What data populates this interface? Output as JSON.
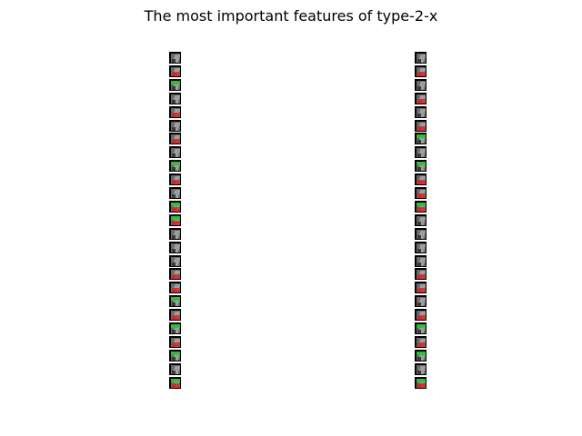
{
  "title": "The most important features of type-2-x",
  "columns": [
    {
      "name": "left",
      "tiles": [
        {
          "overlay": "none"
        },
        {
          "overlay": "red"
        },
        {
          "overlay": "green"
        },
        {
          "overlay": "none"
        },
        {
          "overlay": "red"
        },
        {
          "overlay": "none"
        },
        {
          "overlay": "red"
        },
        {
          "overlay": "none"
        },
        {
          "overlay": "green"
        },
        {
          "overlay": "red"
        },
        {
          "overlay": "none"
        },
        {
          "overlay": "green-red"
        },
        {
          "overlay": "green-red"
        },
        {
          "overlay": "none"
        },
        {
          "overlay": "none"
        },
        {
          "overlay": "none"
        },
        {
          "overlay": "red"
        },
        {
          "overlay": "red"
        },
        {
          "overlay": "green"
        },
        {
          "overlay": "red"
        },
        {
          "overlay": "green"
        },
        {
          "overlay": "red"
        },
        {
          "overlay": "green"
        },
        {
          "overlay": "none"
        },
        {
          "overlay": "green-red"
        }
      ]
    },
    {
      "name": "right",
      "tiles": [
        {
          "overlay": "none"
        },
        {
          "overlay": "red"
        },
        {
          "overlay": "none"
        },
        {
          "overlay": "red"
        },
        {
          "overlay": "none"
        },
        {
          "overlay": "red"
        },
        {
          "overlay": "green"
        },
        {
          "overlay": "none"
        },
        {
          "overlay": "green"
        },
        {
          "overlay": "red"
        },
        {
          "overlay": "red"
        },
        {
          "overlay": "green-red"
        },
        {
          "overlay": "none"
        },
        {
          "overlay": "none"
        },
        {
          "overlay": "none"
        },
        {
          "overlay": "none"
        },
        {
          "overlay": "red"
        },
        {
          "overlay": "red"
        },
        {
          "overlay": "none"
        },
        {
          "overlay": "red"
        },
        {
          "overlay": "green"
        },
        {
          "overlay": "red"
        },
        {
          "overlay": "green"
        },
        {
          "overlay": "none"
        },
        {
          "overlay": "green-red"
        }
      ]
    }
  ]
}
